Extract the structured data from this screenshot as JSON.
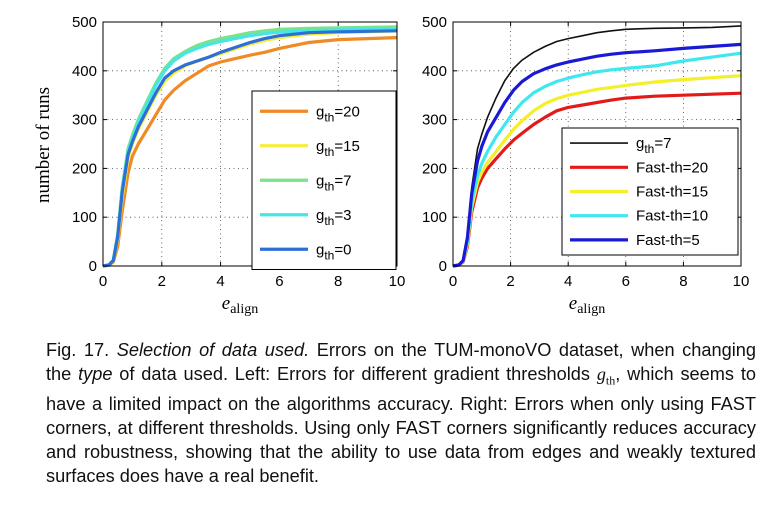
{
  "chart_data": [
    {
      "type": "line",
      "panel": "left",
      "ylabel": "number of runs",
      "xlabel": "e",
      "xlabel_sub": "align",
      "xlim": [
        0,
        10
      ],
      "ylim": [
        0,
        500
      ],
      "xticks": [
        0,
        2,
        4,
        6,
        8,
        10
      ],
      "yticks": [
        0,
        100,
        200,
        300,
        400,
        500
      ],
      "grid": "dotted",
      "legend_position": "right",
      "series": [
        {
          "name": "g",
          "name_sub": "th",
          "name_suffix": "=20",
          "color": "#f08a24",
          "x": [
            0,
            0.2,
            0.35,
            0.5,
            0.65,
            0.85,
            1.0,
            1.2,
            1.5,
            1.8,
            2.1,
            2.4,
            2.8,
            3.2,
            3.6,
            4.0,
            4.5,
            5.0,
            5.5,
            6.0,
            6.5,
            7.0,
            8.0,
            9.0,
            10.0
          ],
          "values": [
            0,
            2,
            8,
            40,
            110,
            190,
            225,
            250,
            280,
            310,
            340,
            360,
            380,
            395,
            410,
            418,
            425,
            432,
            438,
            446,
            452,
            458,
            464,
            466,
            468
          ]
        },
        {
          "name": "g",
          "name_sub": "th",
          "name_suffix": "=15",
          "color": "#f5ef3a",
          "x": [
            0,
            0.2,
            0.35,
            0.5,
            0.65,
            0.85,
            1.0,
            1.2,
            1.5,
            1.8,
            2.1,
            2.4,
            2.8,
            3.2,
            3.6,
            4.0,
            4.5,
            5.0,
            5.5,
            6.0,
            7.0,
            8.0,
            9.0,
            10.0
          ],
          "values": [
            0,
            2,
            10,
            55,
            140,
            220,
            250,
            280,
            315,
            350,
            378,
            395,
            410,
            420,
            428,
            435,
            445,
            455,
            462,
            468,
            475,
            478,
            480,
            482
          ]
        },
        {
          "name": "g",
          "name_sub": "th",
          "name_suffix": "=7",
          "color": "#7be28a",
          "x": [
            0,
            0.2,
            0.35,
            0.5,
            0.65,
            0.85,
            1.0,
            1.2,
            1.5,
            1.8,
            2.1,
            2.4,
            2.8,
            3.2,
            3.6,
            4.0,
            4.5,
            5.0,
            5.5,
            6.0,
            7.0,
            8.0,
            9.0,
            10.0
          ],
          "values": [
            0,
            2,
            12,
            65,
            160,
            240,
            268,
            300,
            338,
            375,
            405,
            425,
            440,
            452,
            460,
            466,
            472,
            478,
            482,
            485,
            487,
            488,
            489,
            490
          ]
        },
        {
          "name": "g",
          "name_sub": "th",
          "name_suffix": "=3",
          "color": "#46e6e6",
          "x": [
            0,
            0.2,
            0.35,
            0.5,
            0.65,
            0.85,
            1.0,
            1.2,
            1.5,
            1.8,
            2.1,
            2.4,
            2.8,
            3.2,
            3.6,
            4.0,
            4.5,
            5.0,
            5.5,
            6.0,
            7.0,
            8.0,
            9.0,
            10.0
          ],
          "values": [
            0,
            2,
            12,
            62,
            155,
            235,
            262,
            295,
            332,
            370,
            400,
            420,
            436,
            446,
            454,
            460,
            466,
            472,
            476,
            479,
            482,
            484,
            485,
            486
          ]
        },
        {
          "name": "g",
          "name_sub": "th",
          "name_suffix": "=0",
          "color": "#2d6fd6",
          "x": [
            0,
            0.2,
            0.35,
            0.5,
            0.65,
            0.85,
            1.0,
            1.2,
            1.5,
            1.8,
            2.1,
            2.4,
            2.8,
            3.2,
            3.6,
            4.0,
            4.5,
            5.0,
            5.5,
            6.0,
            7.0,
            8.0,
            9.0,
            10.0
          ],
          "values": [
            0,
            2,
            11,
            60,
            150,
            228,
            255,
            285,
            320,
            355,
            385,
            400,
            412,
            420,
            428,
            438,
            448,
            458,
            466,
            472,
            478,
            480,
            481,
            482
          ]
        }
      ]
    },
    {
      "type": "line",
      "panel": "right",
      "ylabel": "",
      "xlabel": "e",
      "xlabel_sub": "align",
      "xlim": [
        0,
        10
      ],
      "ylim": [
        0,
        500
      ],
      "xticks": [
        0,
        2,
        4,
        6,
        8,
        10
      ],
      "yticks": [
        0,
        100,
        200,
        300,
        400,
        500
      ],
      "grid": "dotted",
      "legend_position": "right",
      "series": [
        {
          "name": "g",
          "name_sub": "th",
          "name_suffix": "=7",
          "color": "#111111",
          "x": [
            0,
            0.2,
            0.35,
            0.5,
            0.65,
            0.85,
            1.0,
            1.2,
            1.5,
            1.8,
            2.1,
            2.4,
            2.8,
            3.2,
            3.6,
            4.0,
            4.5,
            5.0,
            5.5,
            6.0,
            7.0,
            8.0,
            9.0,
            10.0
          ],
          "values": [
            0,
            2,
            12,
            65,
            160,
            240,
            270,
            305,
            345,
            380,
            405,
            422,
            438,
            450,
            460,
            466,
            472,
            478,
            482,
            485,
            487,
            488,
            489,
            492
          ]
        },
        {
          "name": "Fast-th=20",
          "color": "#e41a1a",
          "x": [
            0,
            0.2,
            0.35,
            0.5,
            0.65,
            0.85,
            1.0,
            1.2,
            1.5,
            1.8,
            2.1,
            2.4,
            2.8,
            3.2,
            3.6,
            4.0,
            4.5,
            5.0,
            5.5,
            6.0,
            7.0,
            8.0,
            9.0,
            10.0
          ],
          "values": [
            0,
            2,
            8,
            40,
            110,
            160,
            180,
            200,
            220,
            240,
            258,
            272,
            290,
            305,
            318,
            325,
            330,
            335,
            340,
            344,
            348,
            350,
            352,
            354
          ]
        },
        {
          "name": "Fast-th=15",
          "color": "#f5ef2a",
          "x": [
            0,
            0.2,
            0.35,
            0.5,
            0.65,
            0.85,
            1.0,
            1.2,
            1.5,
            1.8,
            2.1,
            2.4,
            2.8,
            3.2,
            3.6,
            4.0,
            4.5,
            5.0,
            5.5,
            6.0,
            7.0,
            8.0,
            9.0,
            10.0
          ],
          "values": [
            0,
            2,
            9,
            45,
            120,
            172,
            192,
            212,
            235,
            258,
            280,
            298,
            318,
            333,
            343,
            350,
            356,
            362,
            366,
            370,
            377,
            382,
            386,
            390
          ]
        },
        {
          "name": "Fast-th=10",
          "color": "#3ee8ee",
          "x": [
            0,
            0.2,
            0.35,
            0.5,
            0.65,
            0.85,
            1.0,
            1.2,
            1.5,
            1.8,
            2.1,
            2.4,
            2.8,
            3.2,
            3.6,
            4.0,
            4.5,
            5.0,
            5.5,
            6.0,
            7.0,
            8.0,
            9.0,
            10.0
          ],
          "values": [
            0,
            2,
            10,
            50,
            130,
            185,
            210,
            235,
            265,
            290,
            315,
            335,
            355,
            368,
            378,
            385,
            392,
            398,
            402,
            405,
            410,
            420,
            428,
            436
          ]
        },
        {
          "name": "Fast-th=5",
          "color": "#1a1ad6",
          "x": [
            0,
            0.2,
            0.35,
            0.5,
            0.65,
            0.85,
            1.0,
            1.2,
            1.5,
            1.8,
            2.1,
            2.4,
            2.8,
            3.2,
            3.6,
            4.0,
            4.5,
            5.0,
            5.5,
            6.0,
            7.0,
            8.0,
            9.0,
            10.0
          ],
          "values": [
            0,
            2,
            11,
            58,
            148,
            215,
            245,
            275,
            305,
            335,
            360,
            378,
            394,
            404,
            412,
            418,
            424,
            430,
            434,
            437,
            441,
            446,
            450,
            454
          ]
        }
      ]
    }
  ],
  "caption": {
    "figure_label": "Fig. 17.",
    "title_italic": "Selection of data used.",
    "text_1": " Errors on the TUM-monoVO dataset, when changing the ",
    "type_italic": "type",
    "text_2": " of data used. Left: Errors for different gradient thresholds ",
    "math_g": "g",
    "math_sub": "th",
    "text_3": ", which seems to have a limited impact on the algorithms accuracy. Right: Errors when only using FAST corners, at different thresholds. Using only FAST corners significantly reduces accuracy and robustness, showing that the ability to use data from edges and weakly textured surfaces does have a real benefit."
  }
}
